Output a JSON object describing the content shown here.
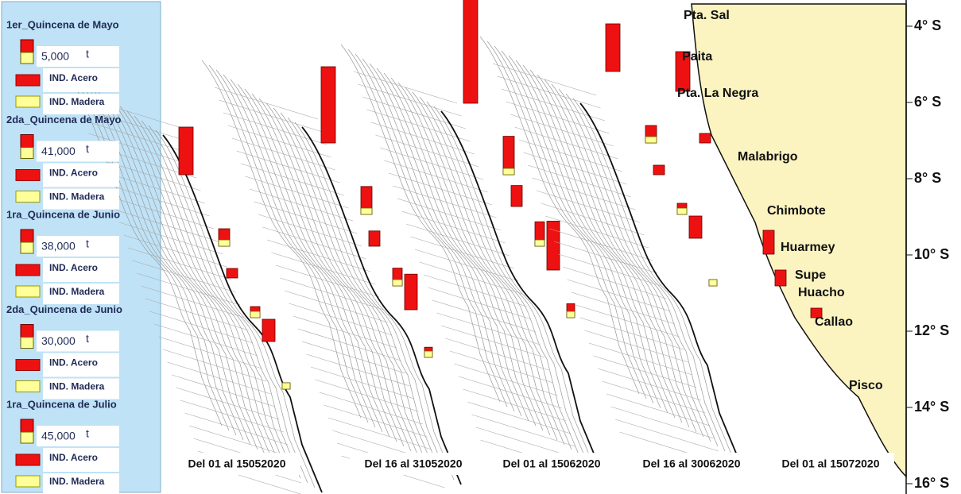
{
  "legend": [
    {
      "title": "1er_Quincena de Mayo",
      "value": "5,000",
      "unit": "t",
      "acero": "IND. Acero",
      "madera": "IND. Madera"
    },
    {
      "title": "2da_Quincena de Mayo",
      "value": "41,000",
      "unit": "t",
      "acero": "IND. Acero",
      "madera": "IND. Madera"
    },
    {
      "title": "1ra_Quincena de Junio",
      "value": "38,000",
      "unit": "t",
      "acero": "IND. Acero",
      "madera": "IND. Madera"
    },
    {
      "title": "2da_Quincena de Junio",
      "value": "30,000",
      "unit": "t",
      "acero": "IND. Acero",
      "madera": "IND. Madera"
    },
    {
      "title": "1ra_Quincena de Julio",
      "value": "45,000",
      "unit": "t",
      "acero": "IND. Acero",
      "madera": "IND. Madera"
    }
  ],
  "places": [
    "Pta. Sal",
    "Paita",
    "Pta. La Negra",
    "Malabrigo",
    "Chimbote",
    "Huarmey",
    "Supe",
    "Huacho",
    "Callao",
    "Pisco"
  ],
  "latitudes": [
    "4° S",
    "6° S",
    "8° S",
    "10° S",
    "12° S",
    "14° S",
    "16° S"
  ],
  "periods": [
    "Del 01 al 15052020",
    "Del 16 al 31052020",
    "Del 01 al 15062020",
    "Del 16 al 30062020",
    "Del 01 al 15072020"
  ]
}
